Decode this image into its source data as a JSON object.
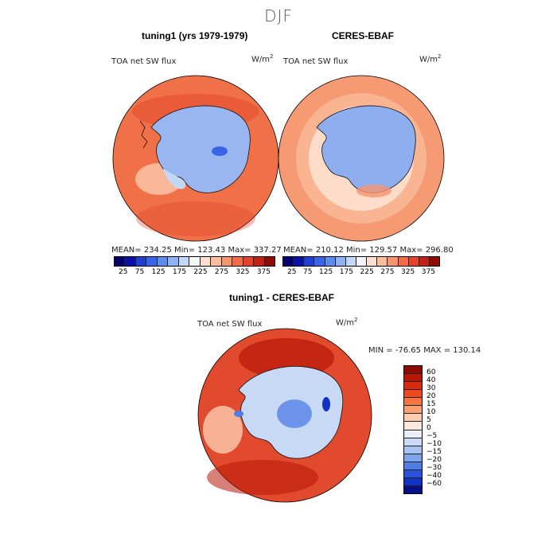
{
  "page_title": "DJF",
  "panels": [
    {
      "title": "tuning1 (yrs 1979-1979)",
      "variable": "TOA net SW flux",
      "units_base": "W/m",
      "units_exp": "2",
      "stats": "MEAN= 234.25   Min= 123.43   Max= 337.27"
    },
    {
      "title": "CERES-EBAF",
      "variable": "TOA net SW flux",
      "units_base": "W/m",
      "units_exp": "2",
      "stats": "MEAN= 210.12   Min= 129.57   Max= 296.80"
    },
    {
      "title": "tuning1 - CERES-EBAF",
      "variable": "TOA net SW flux",
      "units_base": "W/m",
      "units_exp": "2",
      "stats": "MIN = -76.65  MAX = 130.14"
    }
  ],
  "colorbar_top": {
    "labels": [
      "25",
      "75",
      "125",
      "175",
      "225",
      "275",
      "325",
      "375"
    ],
    "colors": [
      "#08006a",
      "#0a0fa8",
      "#1f3fd0",
      "#3a64e8",
      "#5c8cf0",
      "#8fb2f5",
      "#c3d8f8",
      "#f5f5f5",
      "#fde0cf",
      "#fbbfa0",
      "#f7946e",
      "#f26a46",
      "#e2432a",
      "#c31f14",
      "#8e0a04"
    ]
  },
  "colorbar_diff": {
    "labels": [
      "60",
      "40",
      "30",
      "20",
      "15",
      "10",
      "5",
      "0",
      "−5",
      "−10",
      "−15",
      "−20",
      "−30",
      "−40",
      "−60"
    ],
    "colors": [
      "#8e0a04",
      "#b81708",
      "#d92b10",
      "#ee4a1e",
      "#f4753f",
      "#f8a072",
      "#fccbb0",
      "#fbe9df",
      "#eaf0fb",
      "#c9dbf6",
      "#a7c3f2",
      "#7fa3ec",
      "#4f7ce6",
      "#2a52dc",
      "#1232c4",
      "#040f88"
    ]
  },
  "maps": {
    "ocean_tuning": "#f07048",
    "land_tuning": "#9ab6f0",
    "ocean_ceres": "#f59a72",
    "land_ceres": "#8eaef0",
    "diff_ocean": "#e14a2c",
    "diff_land": "#c8d9f6"
  }
}
